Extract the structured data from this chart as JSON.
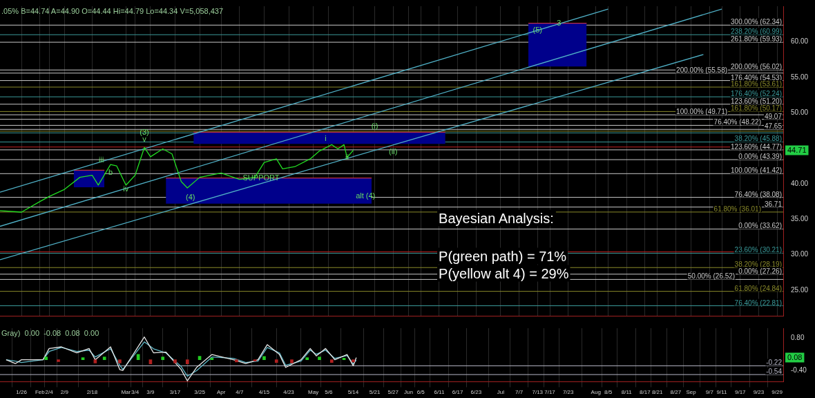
{
  "chart_data": [
    {
      "type": "line",
      "subtitle": ".05% B=44.74 A=44.90 O=44.44 Hi=44.79 Lo=44.34 V=5,058,437",
      "tick_labels": "y",
      "grid": "x",
      "marker": "none",
      "xlim": [
        "--01-19",
        "--10-01"
      ],
      "ylim": [
        21.4,
        65
      ],
      "xticks": [
        {
          "value": "--01-26",
          "label": "1/26"
        },
        {
          "value": "--02-01",
          "label": "Feb"
        },
        {
          "value": "--02-04",
          "label": "2/4"
        },
        {
          "value": "--02-09",
          "label": "2/9"
        },
        {
          "value": "--02-18",
          "label": "2/18"
        },
        {
          "value": "--03-01",
          "label": "Mar"
        },
        {
          "value": "--03-04",
          "label": "3/4"
        },
        {
          "value": "--03-09",
          "label": "3/9"
        },
        {
          "value": "--03-17",
          "label": "3/17"
        },
        {
          "value": "--03-25",
          "label": "3/25"
        },
        {
          "value": "--04-01",
          "label": "Apr"
        },
        {
          "value": "--04-07",
          "label": "4/7"
        },
        {
          "value": "--04-15",
          "label": "4/15"
        },
        {
          "value": "--04-23",
          "label": "4/23"
        },
        {
          "value": "--05-01",
          "label": "May"
        },
        {
          "value": "--05-06",
          "label": "5/6"
        },
        {
          "value": "--05-14",
          "label": "5/14"
        },
        {
          "value": "--05-21",
          "label": "5/21"
        },
        {
          "value": "--05-27",
          "label": "5/27"
        },
        {
          "value": "--06-01",
          "label": "Jun"
        },
        {
          "value": "--06-05",
          "label": "6/5"
        },
        {
          "value": "--06-11",
          "label": "6/11"
        },
        {
          "value": "--06-17",
          "label": "6/17"
        },
        {
          "value": "--06-23",
          "label": "6/23"
        },
        {
          "value": "--07-01",
          "label": "Jul"
        },
        {
          "value": "--07-07",
          "label": "7/7"
        },
        {
          "value": "--07-13",
          "label": "7/13"
        },
        {
          "value": "--07-17",
          "label": "7/17"
        },
        {
          "value": "--07-23",
          "label": "7/23"
        },
        {
          "value": "--08-01",
          "label": "Aug"
        },
        {
          "value": "--08-05",
          "label": "8/5"
        },
        {
          "value": "--08-11",
          "label": "8/11"
        },
        {
          "value": "--08-17",
          "label": "8/17"
        },
        {
          "value": "--08-21",
          "label": "8/21"
        },
        {
          "value": "--08-27",
          "label": "8/27"
        },
        {
          "value": "--09-01",
          "label": "Sep"
        },
        {
          "value": "--09-07",
          "label": "9/7"
        },
        {
          "value": "--09-11",
          "label": "9/11"
        },
        {
          "value": "--09-17",
          "label": "9/17"
        },
        {
          "value": "--09-23",
          "label": "9/23"
        },
        {
          "value": "--09-29",
          "label": "9/29"
        }
      ],
      "yticks": [
        {
          "value": 25,
          "label": "25.00"
        },
        {
          "value": 30,
          "label": "30.00"
        },
        {
          "value": 35,
          "label": "35.00"
        },
        {
          "value": 40,
          "label": "40.00"
        },
        {
          "value": 50,
          "label": "50.00"
        },
        {
          "value": 55,
          "label": "55.00"
        },
        {
          "value": 60,
          "label": "60.00"
        }
      ],
      "series": [
        {
          "type": "line",
          "color": "#22dd22",
          "x": [
            "--01-19",
            "--01-26",
            "--02-01",
            "--02-04",
            "--02-09",
            "--02-14",
            "--02-18",
            "--02-20",
            "--02-24",
            "--02-26",
            "--03-01",
            "--03-04",
            "--03-07",
            "--03-09",
            "--03-13",
            "--03-16",
            "--03-19",
            "--03-21",
            "--03-25",
            "--04-01",
            "--04-07",
            "--04-12",
            "--04-15",
            "--04-19",
            "--04-21",
            "--04-25",
            "--04-30",
            "--05-03",
            "--05-07",
            "--05-09",
            "--05-11",
            "--05-12",
            "--05-14"
          ],
          "values": [
            36.2,
            36.0,
            37.5,
            38.2,
            39.2,
            40.9,
            41.2,
            39.8,
            42.7,
            42.5,
            39.8,
            41.2,
            45.1,
            43.8,
            44.9,
            44.2,
            40.3,
            39.4,
            40.9,
            41.5,
            40.6,
            40.9,
            43.0,
            43.5,
            42.1,
            42.4,
            43.5,
            44.6,
            45.5,
            44.9,
            45.5,
            43.7,
            44.71
          ]
        },
        {
          "type": "line",
          "color": "#4fb0c6",
          "x": [
            "--01-19",
            "--08-05"
          ],
          "values": [
            38.8,
            64.6
          ]
        },
        {
          "type": "line",
          "color": "#4fb0c6",
          "x": [
            "--01-19",
            "--09-11"
          ],
          "values": [
            34.0,
            64.6
          ]
        },
        {
          "type": "line",
          "color": "#4fb0c6",
          "x": [
            "--01-19",
            "--09-05"
          ],
          "values": [
            29.3,
            58.2
          ]
        },
        {
          "type": "line",
          "color": "#c03040",
          "x": [
            "--02-12",
            "--02-22"
          ],
          "values": [
            41.9,
            41.9
          ],
          "lower": [
            39.5,
            39.5
          ],
          "upper": [
            41.9,
            41.9
          ]
        },
        {
          "type": "line",
          "color": "#c03040",
          "x": [
            "--03-23",
            "--06-13"
          ],
          "values": [
            47.25,
            47.25
          ],
          "lower": [
            45.6,
            45.6
          ],
          "upper": [
            47.25,
            47.25
          ]
        },
        {
          "type": "line",
          "color": "#c03040",
          "x": [
            "--03-14",
            "--05-20"
          ],
          "values": [
            40.8,
            40.8
          ],
          "lower": [
            37.2,
            37.2
          ],
          "upper": [
            40.8,
            40.8
          ]
        },
        {
          "type": "line",
          "color": "#c03040",
          "x": [
            "--07-10",
            "--07-29"
          ],
          "values": [
            62.6,
            62.6
          ],
          "lower": [
            56.5,
            56.5
          ],
          "upper": [
            62.6,
            62.6
          ]
        }
      ],
      "ref_lines": [
        {
          "axis": "y",
          "value": 62.34,
          "label": "300.00% (62.34)",
          "color": "#c8c8c8"
        },
        {
          "axis": "y",
          "value": 60.99,
          "label": "238.20% (60.99)",
          "color": "#3a9a9a"
        },
        {
          "axis": "y",
          "value": 59.93,
          "label": "261.80% (59.93)",
          "color": "#c8c8c8"
        },
        {
          "axis": "y",
          "value": 56.02,
          "label": "200.00% (56.02)",
          "color": "#c8c8c8"
        },
        {
          "axis": "y",
          "value": 55.58,
          "label": "200.00% (55.58)",
          "color": "#c8c8c8"
        },
        {
          "axis": "y",
          "value": 54.53,
          "label": "176.40% (54.53)",
          "color": "#c8c8c8"
        },
        {
          "axis": "y",
          "value": 53.61,
          "label": "161.80% (53.61)",
          "color": "#8a8a2a"
        },
        {
          "axis": "y",
          "value": 52.24,
          "label": "176.40% (52.24)",
          "color": "#3a9a9a"
        },
        {
          "axis": "y",
          "value": 51.2,
          "label": "123.60% (51.20)",
          "color": "#c8c8c8"
        },
        {
          "axis": "y",
          "value": 50.17,
          "label": "161.80% (50.17)",
          "color": "#8a8a2a"
        },
        {
          "axis": "y",
          "value": 49.71,
          "label": "100.00% (49.71)",
          "color": "#c8c8c8"
        },
        {
          "axis": "y",
          "value": 49.07,
          "label": "49.07",
          "color": "#c8c8c8"
        },
        {
          "axis": "y",
          "value": 48.22,
          "label": "76.40% (48.22)",
          "color": "#c8c8c8"
        },
        {
          "axis": "y",
          "value": 47.65,
          "label": "47.65",
          "color": "#c8c8c8"
        },
        {
          "axis": "y",
          "value": 47.4,
          "label": null,
          "color": "#8a8a2a"
        },
        {
          "axis": "y",
          "value": 47.16,
          "label": null,
          "color": "#3a9a9a"
        },
        {
          "axis": "y",
          "value": 45.88,
          "label": "38.20% (45.88)",
          "color": "#3a9a9a"
        },
        {
          "axis": "y",
          "value": 45.17,
          "label": null,
          "color": "#c02020"
        },
        {
          "axis": "y",
          "value": 44.77,
          "label": "123.60% (44.77)",
          "color": "#c8c8c8"
        },
        {
          "axis": "y",
          "value": 43.39,
          "label": "0.00% (43.39)",
          "color": "#c8c8c8"
        },
        {
          "axis": "y",
          "value": 41.42,
          "label": "100.00% (41.42)",
          "color": "#c8c8c8"
        },
        {
          "axis": "y",
          "value": 38.08,
          "label": "76.40% (38.08)",
          "color": "#c8c8c8"
        },
        {
          "axis": "y",
          "value": 36.71,
          "label": "36.71",
          "color": "#c8c8c8"
        },
        {
          "axis": "y",
          "value": 36.01,
          "label": "61.80% (36.01)",
          "color": "#8a8a2a"
        },
        {
          "axis": "y",
          "value": 33.62,
          "label": "0.00% (33.62)",
          "color": "#c8c8c8"
        },
        {
          "axis": "y",
          "value": 30.4,
          "label": null,
          "color": "#c02020"
        },
        {
          "axis": "y",
          "value": 30.21,
          "label": "23.60% (30.21)",
          "color": "#3a9a9a"
        },
        {
          "axis": "y",
          "value": 28.19,
          "label": "38.20% (28.19)",
          "color": "#8a8a2a"
        },
        {
          "axis": "y",
          "value": 27.26,
          "label": "0.00% (27.26)",
          "color": "#c8c8c8"
        },
        {
          "axis": "y",
          "value": 26.52,
          "label": "50.00% (26.52)",
          "color": "#c8c8c8"
        },
        {
          "axis": "y",
          "value": 24.84,
          "label": "61.80% (24.84)",
          "color": "#8a8a2a"
        },
        {
          "axis": "y",
          "value": 22.81,
          "label": "76.40% (22.81)",
          "color": "#3a9a9a"
        }
      ],
      "annotations": [
        "Bayesian Analysis:",
        "P(green path) = 71%",
        "P(yellow alt 4) = 29%",
        {
          "text": "(3)",
          "x": "--03-07",
          "y": 47.2
        },
        {
          "text": "v",
          "x": "--03-07",
          "y": 46.2
        },
        {
          "text": "iii",
          "x": "--02-21",
          "y": 43.3
        },
        {
          "text": "b",
          "x": "--02-24",
          "y": 41.5
        },
        {
          "text": "iv",
          "x": "--03-01",
          "y": 39.2
        },
        {
          "text": "(4)",
          "x": "--03-22",
          "y": 38.0
        },
        {
          "text": "SUPPORT",
          "x": "--04-14",
          "y": 40.8
        },
        {
          "text": "alt (4)",
          "x": "--05-18",
          "y": 38.2
        },
        {
          "text": "i",
          "x": "--05-05",
          "y": 46.3
        },
        {
          "text": "ii",
          "x": "--05-12",
          "y": 43.7
        },
        {
          "text": "(i)",
          "x": "--05-21",
          "y": 48.1
        },
        {
          "text": "(ii)",
          "x": "--05-27",
          "y": 44.5
        },
        {
          "text": "3",
          "x": "--07-20",
          "y": 62.6
        },
        {
          "text": "(5)",
          "x": "--07-13",
          "y": 61.6
        },
        {
          "text": "44.71",
          "y": 44.71
        }
      ]
    },
    {
      "type": "line",
      "subtitle": "Gray)  0.00  -0.08  0.08  0.00",
      "grid": "x",
      "marker": "none",
      "xlim": [
        "--01-19",
        "--10-01"
      ],
      "ylim": [
        -0.8,
        1.15
      ],
      "xticks": [
        {
          "value": "--01-26",
          "label": "1/26"
        },
        {
          "value": "--02-01",
          "label": "Feb"
        },
        {
          "value": "--02-04",
          "label": "2/4"
        },
        {
          "value": "--02-09",
          "label": "2/9"
        },
        {
          "value": "--02-18",
          "label": "2/18"
        },
        {
          "value": "--03-01",
          "label": "Mar"
        },
        {
          "value": "--03-04",
          "label": "3/4"
        },
        {
          "value": "--03-09",
          "label": "3/9"
        },
        {
          "value": "--03-17",
          "label": "3/17"
        },
        {
          "value": "--03-25",
          "label": "3/25"
        },
        {
          "value": "--04-01",
          "label": "Apr"
        },
        {
          "value": "--04-07",
          "label": "4/7"
        },
        {
          "value": "--04-15",
          "label": "4/15"
        },
        {
          "value": "--04-23",
          "label": "4/23"
        },
        {
          "value": "--05-01",
          "label": "May"
        },
        {
          "value": "--05-06",
          "label": "5/6"
        },
        {
          "value": "--05-14",
          "label": "5/14"
        },
        {
          "value": "--05-21",
          "label": "5/21"
        },
        {
          "value": "--05-27",
          "label": "5/27"
        },
        {
          "value": "--06-01",
          "label": "Jun"
        },
        {
          "value": "--06-05",
          "label": "6/5"
        },
        {
          "value": "--06-11",
          "label": "6/11"
        },
        {
          "value": "--06-17",
          "label": "6/17"
        },
        {
          "value": "--06-23",
          "label": "6/23"
        },
        {
          "value": "--07-01",
          "label": "Jul"
        },
        {
          "value": "--07-07",
          "label": "7/7"
        },
        {
          "value": "--07-13",
          "label": "7/13"
        },
        {
          "value": "--07-17",
          "label": "7/17"
        },
        {
          "value": "--07-23",
          "label": "7/23"
        },
        {
          "value": "--08-01",
          "label": "Aug"
        },
        {
          "value": "--08-05",
          "label": "8/5"
        },
        {
          "value": "--08-11",
          "label": "8/11"
        },
        {
          "value": "--08-17",
          "label": "8/17"
        },
        {
          "value": "--08-21",
          "label": "8/21"
        },
        {
          "value": "--08-27",
          "label": "8/27"
        },
        {
          "value": "--09-01",
          "label": "Sep"
        },
        {
          "value": "--09-07",
          "label": "9/7"
        },
        {
          "value": "--09-11",
          "label": "9/11"
        },
        {
          "value": "--09-17",
          "label": "9/17"
        },
        {
          "value": "--09-23",
          "label": "9/23"
        },
        {
          "value": "--09-29",
          "label": "9/29"
        }
      ],
      "yticks": [
        {
          "value": 0.8,
          "label": "0.80"
        },
        {
          "value": -0.4,
          "label": "-0.40"
        }
      ],
      "series": [
        {
          "type": "bar",
          "x": [
            "--02-03",
            "--02-07",
            "--02-15",
            "--02-19",
            "--02-22",
            "--02-27",
            "--03-05",
            "--03-09",
            "--03-13",
            "--03-17",
            "--03-21",
            "--03-25",
            "--03-29",
            "--04-06",
            "--04-12",
            "--04-15",
            "--04-19",
            "--04-24",
            "--04-29",
            "--05-03",
            "--05-07",
            "--05-11",
            "--05-14"
          ],
          "values": [
            0.1,
            -0.07,
            0.08,
            -0.12,
            0.1,
            -0.12,
            0.2,
            -0.15,
            0.1,
            -0.12,
            -0.15,
            0.13,
            0.06,
            -0.08,
            -0.05,
            0.12,
            -0.1,
            -0.12,
            0.08,
            0.1,
            -0.1,
            0.06,
            -0.08
          ],
          "colors": [
            "#22cc22",
            "#b02020",
            "#22cc22",
            "#b02020",
            "#22cc22",
            "#b02020",
            "#22cc22",
            "#b02020",
            "#22cc22",
            "#b02020",
            "#b02020",
            "#22cc22",
            "#22cc22",
            "#b02020",
            "#b02020",
            "#22cc22",
            "#b02020",
            "#b02020",
            "#22cc22",
            "#22cc22",
            "#b02020",
            "#22cc22",
            "#b02020"
          ]
        },
        {
          "type": "line",
          "color": "#e8e8e8",
          "x": [
            "--01-21",
            "--01-24",
            "--01-26",
            "--02-02",
            "--02-04",
            "--02-08",
            "--02-13",
            "--02-17",
            "--02-19",
            "--02-24",
            "--02-27",
            "--02-28",
            "--03-07",
            "--03-10",
            "--03-14",
            "--03-19",
            "--03-21",
            "--03-24",
            "--03-29",
            "--04-05",
            "--04-09",
            "--04-13",
            "--04-16",
            "--04-20",
            "--04-22",
            "--04-27",
            "--04-30",
            "--05-02",
            "--05-05",
            "--05-08",
            "--05-12",
            "--05-14",
            "--05-15"
          ],
          "values": [
            0,
            -0.14,
            0,
            0,
            0.41,
            0.47,
            0.25,
            0.41,
            0,
            0.47,
            -0.36,
            -0.39,
            0.83,
            0.25,
            0.28,
            -0.36,
            -0.77,
            -0.28,
            0.19,
            0,
            -0.14,
            0,
            0.55,
            0.19,
            -0.28,
            0,
            0.41,
            0.14,
            0.41,
            0,
            0.19,
            -0.22,
            0.08
          ]
        },
        {
          "type": "line",
          "color": "#5fb8c8",
          "x": [
            "--01-21",
            "--01-24",
            "--01-26",
            "--02-02",
            "--02-04",
            "--02-08",
            "--02-13",
            "--02-17",
            "--02-19",
            "--02-24",
            "--02-27",
            "--02-28",
            "--03-07",
            "--03-10",
            "--03-14",
            "--03-19",
            "--03-21",
            "--03-24",
            "--03-29",
            "--04-05",
            "--04-09",
            "--04-13",
            "--04-16",
            "--04-20",
            "--04-22",
            "--04-27",
            "--04-30",
            "--05-02",
            "--05-05",
            "--05-08",
            "--05-12",
            "--05-14",
            "--05-15"
          ],
          "values": [
            0,
            -0.05,
            -0.1,
            0,
            0.3,
            0.45,
            0.3,
            0.35,
            0.1,
            0.4,
            -0.2,
            -0.35,
            0.65,
            0.4,
            0.25,
            -0.25,
            -0.6,
            -0.4,
            0.1,
            0.05,
            -0.1,
            -0.05,
            0.45,
            0.25,
            -0.2,
            -0.05,
            0.35,
            0.2,
            0.35,
            0.05,
            0.15,
            -0.15,
            -0.02
          ]
        }
      ],
      "ref_lines": [
        {
          "axis": "y",
          "value": -0.22,
          "label": "-0.22",
          "color": "#b8b8c8"
        },
        {
          "axis": "y",
          "value": -0.54,
          "label": "-0.54",
          "color": "#b8b8c8"
        }
      ],
      "annotations": [
        {
          "text": "0.08",
          "y": 0.08
        }
      ]
    }
  ]
}
